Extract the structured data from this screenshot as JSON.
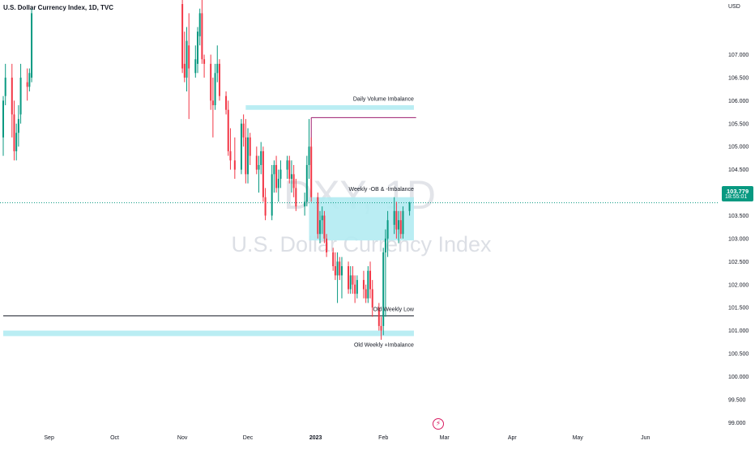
{
  "header": {
    "title": "U.S. Dollar Currency Index, 1D, TVC",
    "currency": "USD"
  },
  "watermark": {
    "symbol": "DXY, 1D",
    "name": "U.S. Dollar Currency Index"
  },
  "last_price": {
    "price": "103.779",
    "countdown": "18:55:01",
    "color": "#089981"
  },
  "colors": {
    "up": "#089981",
    "down": "#f23645",
    "zone": "#b2ebf2",
    "magenta_line": "#9c1d6e"
  },
  "chart_data": {
    "type": "candlestick",
    "title": "U.S. Dollar Currency Index, 1D, TVC",
    "y_unit": "USD",
    "y_range": [
      98.9,
      108.1
    ],
    "y_ticks": [
      "107.000",
      "106.500",
      "106.000",
      "105.500",
      "105.000",
      "104.500",
      "104.000",
      "103.500",
      "103.000",
      "102.500",
      "102.000",
      "101.500",
      "101.000",
      "100.500",
      "100.000",
      "99.500",
      "99.000"
    ],
    "x_ticks": [
      "Sep",
      "Oct",
      "Nov",
      "Dec",
      "2023",
      "Feb",
      "Mar",
      "Apr",
      "May",
      "Jun"
    ],
    "visible_range": [
      "2022-08-11",
      "2023-06-30"
    ],
    "grid": false,
    "last_price": 103.779,
    "zones": [
      {
        "label": "Daily Volume Imbalance",
        "from": "2022-11-30",
        "to": "2023-02-15",
        "low": 105.8,
        "high": 105.9
      },
      {
        "label": "Weekly -OB & -Imbalance",
        "from": "2022-12-29",
        "to": "2023-02-15",
        "low": 102.96,
        "high": 103.9
      },
      {
        "label": "Old Weekly +Imbalance",
        "from": "2022-08-11",
        "to": "2023-02-15",
        "low": 100.88,
        "high": 101.0
      }
    ],
    "lines": [
      {
        "label": "Old Weekly Low",
        "from": "2022-08-11",
        "to": "2023-02-15",
        "value": 101.32
      },
      {
        "label": "",
        "from": "2022-12-30",
        "to": "2023-02-16",
        "value": 105.63
      }
    ],
    "candles": [
      {
        "date": "2022-08-11",
        "o": 105.2,
        "h": 106.1,
        "l": 104.8,
        "c": 106.0
      },
      {
        "date": "2022-08-12",
        "o": 106.1,
        "h": 106.8,
        "l": 105.9,
        "c": 106.5
      },
      {
        "date": "2022-08-15",
        "o": 106.5,
        "h": 106.8,
        "l": 105.2,
        "c": 105.7
      },
      {
        "date": "2022-08-16",
        "o": 105.7,
        "h": 106.0,
        "l": 104.7,
        "c": 104.9
      },
      {
        "date": "2022-08-17",
        "o": 104.9,
        "h": 105.5,
        "l": 104.7,
        "c": 105.3
      },
      {
        "date": "2022-08-18",
        "o": 105.3,
        "h": 105.9,
        "l": 105.0,
        "c": 105.6
      },
      {
        "date": "2022-08-19",
        "o": 105.7,
        "h": 106.8,
        "l": 105.5,
        "c": 106.5
      },
      {
        "date": "2022-08-22",
        "o": 106.4,
        "h": 106.7,
        "l": 106.0,
        "c": 106.3
      },
      {
        "date": "2022-08-23",
        "o": 106.3,
        "h": 106.7,
        "l": 106.2,
        "c": 106.6
      },
      {
        "date": "2022-08-24",
        "o": 106.5,
        "h": 108.0,
        "l": 106.4,
        "c": 107.9
      },
      {
        "date": "2022-11-01",
        "o": 108.1,
        "h": 108.2,
        "l": 106.6,
        "c": 106.7
      },
      {
        "date": "2022-11-02",
        "o": 106.8,
        "h": 107.5,
        "l": 106.4,
        "c": 106.5
      },
      {
        "date": "2022-11-03",
        "o": 106.5,
        "h": 107.6,
        "l": 106.2,
        "c": 107.3
      },
      {
        "date": "2022-11-04",
        "o": 107.2,
        "h": 107.9,
        "l": 105.6,
        "c": 106.7
      },
      {
        "date": "2022-11-07",
        "o": 106.6,
        "h": 107.2,
        "l": 106.5,
        "c": 106.9
      },
      {
        "date": "2022-11-08",
        "o": 106.8,
        "h": 107.6,
        "l": 106.6,
        "c": 107.5
      },
      {
        "date": "2022-11-09",
        "o": 107.4,
        "h": 108.0,
        "l": 107.2,
        "c": 107.9
      },
      {
        "date": "2022-11-10",
        "o": 107.9,
        "h": 108.2,
        "l": 106.8,
        "c": 106.9
      },
      {
        "date": "2022-11-11",
        "o": 106.9,
        "h": 107.0,
        "l": 106.5,
        "c": 106.8
      },
      {
        "date": "2022-11-14",
        "o": 106.8,
        "h": 107.0,
        "l": 105.8,
        "c": 106.0
      },
      {
        "date": "2022-11-15",
        "o": 106.0,
        "h": 106.5,
        "l": 105.2,
        "c": 105.9
      },
      {
        "date": "2022-11-16",
        "o": 105.9,
        "h": 106.8,
        "l": 105.8,
        "c": 106.6
      },
      {
        "date": "2022-11-17",
        "o": 106.6,
        "h": 107.2,
        "l": 106.4,
        "c": 106.8
      },
      {
        "date": "2022-11-18",
        "o": 106.8,
        "h": 106.9,
        "l": 106.0,
        "c": 106.1
      },
      {
        "date": "2022-11-21",
        "o": 106.1,
        "h": 106.2,
        "l": 105.7,
        "c": 105.8
      },
      {
        "date": "2022-11-22",
        "o": 105.8,
        "h": 106.0,
        "l": 104.8,
        "c": 104.9
      },
      {
        "date": "2022-11-23",
        "o": 104.9,
        "h": 105.4,
        "l": 104.5,
        "c": 104.7
      },
      {
        "date": "2022-11-25",
        "o": 104.7,
        "h": 105.2,
        "l": 104.3,
        "c": 104.5
      },
      {
        "date": "2022-11-28",
        "o": 104.5,
        "h": 105.6,
        "l": 104.4,
        "c": 105.5
      },
      {
        "date": "2022-11-29",
        "o": 105.5,
        "h": 105.7,
        "l": 105.0,
        "c": 105.2
      },
      {
        "date": "2022-11-30",
        "o": 105.2,
        "h": 105.6,
        "l": 104.2,
        "c": 104.4
      },
      {
        "date": "2022-12-01",
        "o": 104.4,
        "h": 105.4,
        "l": 104.2,
        "c": 105.2
      },
      {
        "date": "2022-12-02",
        "o": 105.2,
        "h": 105.3,
        "l": 104.6,
        "c": 104.8
      },
      {
        "date": "2022-12-05",
        "o": 104.8,
        "h": 105.0,
        "l": 104.4,
        "c": 104.5
      },
      {
        "date": "2022-12-06",
        "o": 104.5,
        "h": 104.8,
        "l": 104.0,
        "c": 104.6
      },
      {
        "date": "2022-12-07",
        "o": 104.6,
        "h": 105.1,
        "l": 104.4,
        "c": 104.9
      },
      {
        "date": "2022-12-08",
        "o": 104.9,
        "h": 105.0,
        "l": 103.8,
        "c": 103.9
      },
      {
        "date": "2022-12-09",
        "o": 103.9,
        "h": 104.1,
        "l": 103.4,
        "c": 103.5
      },
      {
        "date": "2022-12-12",
        "o": 103.5,
        "h": 104.6,
        "l": 103.4,
        "c": 104.4
      },
      {
        "date": "2022-12-13",
        "o": 104.4,
        "h": 104.7,
        "l": 104.0,
        "c": 104.6
      },
      {
        "date": "2022-12-14",
        "o": 104.6,
        "h": 104.8,
        "l": 104.0,
        "c": 104.1
      },
      {
        "date": "2022-12-15",
        "o": 104.1,
        "h": 104.5,
        "l": 103.8,
        "c": 104.3
      },
      {
        "date": "2022-12-16",
        "o": 104.3,
        "h": 104.7,
        "l": 104.1,
        "c": 104.5
      },
      {
        "date": "2022-12-19",
        "o": 104.5,
        "h": 104.8,
        "l": 104.3,
        "c": 104.7
      },
      {
        "date": "2022-12-20",
        "o": 104.7,
        "h": 104.8,
        "l": 104.2,
        "c": 104.3
      },
      {
        "date": "2022-12-21",
        "o": 104.3,
        "h": 104.7,
        "l": 104.0,
        "c": 104.4
      },
      {
        "date": "2022-12-22",
        "o": 104.4,
        "h": 104.6,
        "l": 103.9,
        "c": 104.1
      },
      {
        "date": "2022-12-23",
        "o": 104.1,
        "h": 104.3,
        "l": 103.6,
        "c": 103.7
      },
      {
        "date": "2022-12-27",
        "o": 103.7,
        "h": 104.0,
        "l": 103.5,
        "c": 103.8
      },
      {
        "date": "2022-12-28",
        "o": 103.8,
        "h": 104.8,
        "l": 103.7,
        "c": 104.6
      },
      {
        "date": "2022-12-29",
        "o": 104.6,
        "h": 105.6,
        "l": 104.3,
        "c": 105.0
      },
      {
        "date": "2022-12-30",
        "o": 105.0,
        "h": 105.2,
        "l": 103.8,
        "c": 103.9
      },
      {
        "date": "2023-01-02",
        "o": 103.9,
        "h": 104.0,
        "l": 103.0,
        "c": 103.1
      },
      {
        "date": "2023-01-03",
        "o": 103.1,
        "h": 103.6,
        "l": 102.9,
        "c": 103.4
      },
      {
        "date": "2023-01-04",
        "o": 103.4,
        "h": 103.7,
        "l": 103.1,
        "c": 103.5
      },
      {
        "date": "2023-01-05",
        "o": 103.5,
        "h": 103.6,
        "l": 102.9,
        "c": 103.0
      },
      {
        "date": "2023-01-06",
        "o": 103.0,
        "h": 103.1,
        "l": 102.6,
        "c": 102.7
      },
      {
        "date": "2023-01-09",
        "o": 102.7,
        "h": 102.8,
        "l": 102.3,
        "c": 102.4
      },
      {
        "date": "2023-01-10",
        "o": 102.4,
        "h": 102.7,
        "l": 102.1,
        "c": 102.2
      },
      {
        "date": "2023-01-11",
        "o": 102.2,
        "h": 102.7,
        "l": 101.6,
        "c": 102.5
      },
      {
        "date": "2023-01-12",
        "o": 102.5,
        "h": 102.6,
        "l": 102.1,
        "c": 102.2
      },
      {
        "date": "2023-01-13",
        "o": 102.2,
        "h": 102.6,
        "l": 101.7,
        "c": 102.4
      },
      {
        "date": "2023-01-16",
        "o": 102.4,
        "h": 102.5,
        "l": 101.8,
        "c": 101.9
      },
      {
        "date": "2023-01-17",
        "o": 101.9,
        "h": 102.4,
        "l": 101.8,
        "c": 102.2
      },
      {
        "date": "2023-01-18",
        "o": 102.2,
        "h": 102.4,
        "l": 101.8,
        "c": 102.0
      },
      {
        "date": "2023-01-19",
        "o": 102.0,
        "h": 102.2,
        "l": 101.6,
        "c": 101.8
      },
      {
        "date": "2023-01-20",
        "o": 101.8,
        "h": 102.2,
        "l": 101.7,
        "c": 102.1
      },
      {
        "date": "2023-01-23",
        "o": 102.1,
        "h": 102.3,
        "l": 101.7,
        "c": 101.9
      },
      {
        "date": "2023-01-24",
        "o": 101.9,
        "h": 102.0,
        "l": 101.6,
        "c": 101.7
      },
      {
        "date": "2023-01-25",
        "o": 101.7,
        "h": 102.4,
        "l": 101.6,
        "c": 102.3
      },
      {
        "date": "2023-01-26",
        "o": 102.3,
        "h": 102.5,
        "l": 101.7,
        "c": 101.9
      },
      {
        "date": "2023-01-27",
        "o": 101.9,
        "h": 102.1,
        "l": 101.3,
        "c": 101.5
      },
      {
        "date": "2023-01-30",
        "o": 101.5,
        "h": 101.6,
        "l": 101.0,
        "c": 101.1
      },
      {
        "date": "2023-01-31",
        "o": 101.1,
        "h": 101.3,
        "l": 100.8,
        "c": 101.0
      },
      {
        "date": "2023-02-01",
        "o": 101.1,
        "h": 102.8,
        "l": 100.9,
        "c": 102.7
      },
      {
        "date": "2023-02-02",
        "o": 102.7,
        "h": 103.2,
        "l": 101.3,
        "c": 103.0
      },
      {
        "date": "2023-02-03",
        "o": 103.0,
        "h": 103.6,
        "l": 102.6,
        "c": 103.4
      },
      {
        "date": "2023-02-06",
        "o": 103.3,
        "h": 103.9,
        "l": 103.1,
        "c": 103.6
      },
      {
        "date": "2023-02-07",
        "o": 103.6,
        "h": 103.8,
        "l": 103.0,
        "c": 103.2
      },
      {
        "date": "2023-02-08",
        "o": 103.2,
        "h": 103.6,
        "l": 102.9,
        "c": 103.4
      },
      {
        "date": "2023-02-09",
        "o": 103.4,
        "h": 103.6,
        "l": 103.0,
        "c": 103.1
      },
      {
        "date": "2023-02-10",
        "o": 103.1,
        "h": 103.7,
        "l": 103.0,
        "c": 103.6
      },
      {
        "date": "2023-02-13",
        "o": 103.6,
        "h": 103.8,
        "l": 103.5,
        "c": 103.78
      }
    ]
  }
}
